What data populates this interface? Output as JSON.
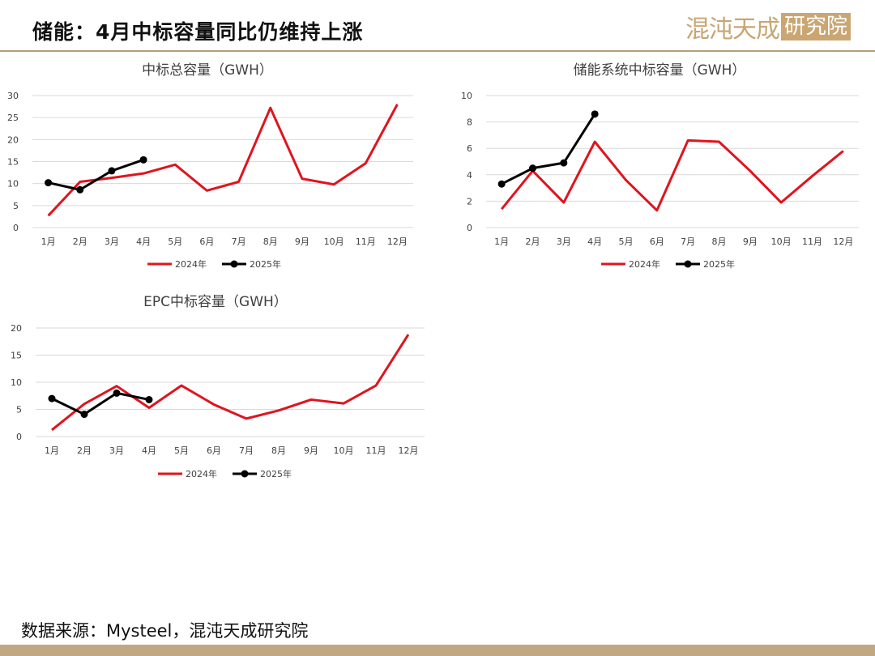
{
  "header": {
    "title": "储能：4月中标容量同比仍维持上涨",
    "logo_text_a": "混沌天成",
    "logo_text_b": "研究院"
  },
  "footer": {
    "source": "数据来源：Mysteel，混沌天成研究院"
  },
  "colors": {
    "series_2024": "#e0141e",
    "series_2025": "#000000",
    "grid": "#d9d9d9",
    "accent": "#c2a882"
  },
  "chart_data": [
    {
      "type": "line",
      "title": "中标总容量（GWH）",
      "categories": [
        "1月",
        "2月",
        "3月",
        "4月",
        "5月",
        "6月",
        "7月",
        "8月",
        "9月",
        "10月",
        "11月",
        "12月"
      ],
      "ylim": [
        0,
        30
      ],
      "yticks": [
        0,
        5,
        10,
        15,
        20,
        25,
        30
      ],
      "ytick_labels": [
        "0",
        "5",
        "10",
        "15",
        "20",
        "25",
        "30"
      ],
      "grid": true,
      "legend": "bottom",
      "series": [
        {
          "name": "2024年",
          "values": [
            2.7,
            10.4,
            11.3,
            12.3,
            14.3,
            8.4,
            10.4,
            27.2,
            11.1,
            9.8,
            14.6,
            28.0
          ]
        },
        {
          "name": "2025年",
          "values": [
            10.2,
            8.6,
            12.9,
            15.4,
            null,
            null,
            null,
            null,
            null,
            null,
            null,
            null
          ]
        }
      ]
    },
    {
      "type": "line",
      "title": "储能系统中标容量（GWH）",
      "categories": [
        "1月",
        "2月",
        "3月",
        "4月",
        "5月",
        "6月",
        "7月",
        "8月",
        "9月",
        "10月",
        "11月",
        "12月"
      ],
      "ylim": [
        0,
        10
      ],
      "yticks": [
        0,
        2,
        4,
        6,
        8,
        10
      ],
      "ytick_labels": [
        "0",
        "2",
        "4",
        "6",
        "8",
        "10"
      ],
      "grid": true,
      "legend": "bottom",
      "series": [
        {
          "name": "2024年",
          "values": [
            1.4,
            4.3,
            1.9,
            6.5,
            3.6,
            1.3,
            6.6,
            6.5,
            4.3,
            1.9,
            3.9,
            5.8
          ]
        },
        {
          "name": "2025年",
          "values": [
            3.3,
            4.5,
            4.9,
            8.6,
            null,
            null,
            null,
            null,
            null,
            null,
            null,
            null
          ]
        }
      ]
    },
    {
      "type": "line",
      "title": "EPC中标容量（GWH）",
      "categories": [
        "1月",
        "2月",
        "3月",
        "4月",
        "5月",
        "6月",
        "7月",
        "8月",
        "9月",
        "10月",
        "11月",
        "12月"
      ],
      "ylim": [
        0,
        20
      ],
      "yticks": [
        0,
        5,
        10,
        15,
        20
      ],
      "ytick_labels": [
        "0",
        "5",
        "10",
        "15",
        "20"
      ],
      "grid": true,
      "legend": "bottom",
      "series": [
        {
          "name": "2024年",
          "values": [
            1.2,
            6.0,
            9.3,
            5.3,
            9.4,
            5.9,
            3.3,
            4.8,
            6.8,
            6.1,
            9.4,
            18.8
          ]
        },
        {
          "name": "2025年",
          "values": [
            7.0,
            4.1,
            8.0,
            6.8,
            null,
            null,
            null,
            null,
            null,
            null,
            null,
            null
          ]
        }
      ]
    }
  ]
}
